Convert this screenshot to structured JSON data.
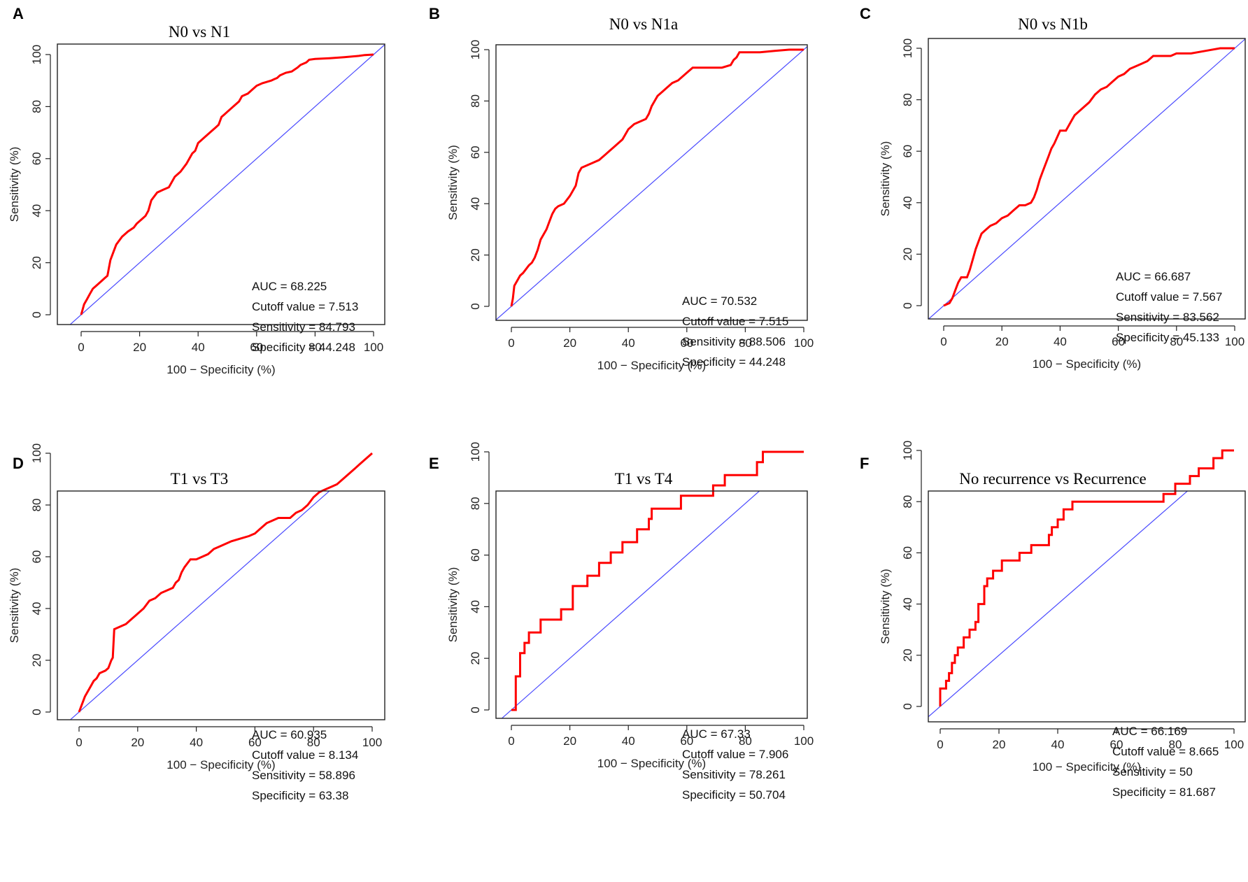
{
  "figure": {
    "panels": [
      "A",
      "B",
      "C",
      "D",
      "E",
      "F"
    ]
  },
  "chart_data": [
    {
      "type": "line",
      "panel": "A",
      "title": "N0 vs N1",
      "xlabel": "100 − Specificity (%)",
      "ylabel": "Sensitivity (%)",
      "xlim": [
        0,
        100
      ],
      "ylim": [
        0,
        100
      ],
      "xticks": [
        "0",
        "20",
        "40",
        "60",
        "80",
        "100"
      ],
      "yticks": [
        "0",
        "20",
        "40",
        "60",
        "80",
        "100"
      ],
      "reference_line": {
        "x": [
          0,
          100
        ],
        "y": [
          0,
          100
        ],
        "color": "#4a4aff"
      },
      "series": [
        {
          "name": "ROC",
          "color": "#ff0000",
          "x": [
            0,
            0.5,
            1,
            2,
            3,
            4,
            5,
            6,
            7,
            8,
            9,
            9.5,
            10,
            11,
            12,
            14,
            16,
            18,
            19,
            21,
            22,
            23,
            24,
            26,
            28,
            30,
            31,
            32,
            34,
            36,
            37,
            38,
            39,
            40,
            41,
            42,
            44,
            46,
            47,
            48,
            49,
            50,
            52,
            54,
            55,
            57,
            58,
            60,
            62,
            65,
            66,
            67,
            68,
            70,
            72,
            74,
            75,
            77,
            78,
            80,
            85,
            90,
            95,
            97,
            100
          ],
          "y": [
            0,
            2,
            4,
            6,
            8,
            10,
            11,
            12,
            13,
            14,
            15,
            18,
            21,
            24,
            27,
            30,
            32,
            33.5,
            35,
            37,
            38,
            40,
            44,
            47,
            48,
            49,
            51,
            53,
            55,
            58,
            60,
            62,
            63,
            66,
            67,
            68,
            70,
            72,
            73,
            76,
            77,
            78,
            80,
            82,
            84,
            85,
            86,
            88,
            89,
            90,
            90.5,
            91,
            92,
            93,
            93.5,
            95,
            96,
            97,
            98,
            98.3,
            98.6,
            99,
            99.5,
            99.8,
            100
          ]
        }
      ],
      "stats": {
        "auc": "AUC = 68.225",
        "cutoff": "Cutoff value = 7.513",
        "sensitivity": "Sensitivity = 84.793",
        "specificity": "Specificity = 44.248"
      }
    },
    {
      "type": "line",
      "panel": "B",
      "title": "N0 vs N1a",
      "xlabel": "100 − Specificity (%)",
      "ylabel": "Sensitivity (%)",
      "xlim": [
        0,
        100
      ],
      "ylim": [
        0,
        100
      ],
      "xticks": [
        "0",
        "20",
        "40",
        "60",
        "80",
        "100"
      ],
      "yticks": [
        "0",
        "20",
        "40",
        "60",
        "80",
        "100"
      ],
      "reference_line": {
        "x": [
          0,
          100
        ],
        "y": [
          0,
          100
        ],
        "color": "#4a4aff"
      },
      "series": [
        {
          "name": "ROC",
          "color": "#ff0000",
          "x": [
            0,
            0.5,
            1,
            2,
            3,
            4,
            5,
            6,
            7,
            8,
            9,
            10,
            11,
            12,
            13,
            14,
            15,
            16,
            18,
            20,
            21,
            22,
            23,
            24,
            26,
            28,
            30,
            31,
            32,
            34,
            35,
            36,
            38,
            39,
            40,
            41,
            42,
            44,
            46,
            47,
            48,
            49,
            50,
            52,
            54,
            55,
            57,
            58,
            60,
            62,
            64,
            66,
            68,
            70,
            72,
            75,
            76,
            77,
            78,
            80,
            85,
            90,
            95,
            100
          ],
          "y": [
            0,
            3,
            8,
            10,
            12,
            13,
            14.5,
            16,
            17,
            19,
            22,
            26,
            28,
            30,
            33,
            36,
            38,
            39,
            40,
            43,
            45,
            47,
            52,
            54,
            55,
            56,
            57,
            58,
            59,
            61,
            62,
            63,
            65,
            67,
            69,
            70,
            71,
            72,
            73,
            75,
            78,
            80,
            82,
            84,
            86,
            87,
            88,
            89,
            91,
            93,
            93,
            93,
            93,
            93,
            93,
            94,
            96,
            97,
            99,
            99,
            99,
            99.5,
            100,
            100
          ]
        }
      ],
      "stats": {
        "auc": "AUC = 70.532",
        "cutoff": "Cutoff value = 7.515",
        "sensitivity": "Sensitivity = 88.506",
        "specificity": "Specificity = 44.248"
      }
    },
    {
      "type": "line",
      "panel": "C",
      "title": "N0 vs N1b",
      "xlabel": "100 − Specificity (%)",
      "ylabel": "Sensitivity (%)",
      "xlim": [
        0,
        100
      ],
      "ylim": [
        0,
        100
      ],
      "xticks": [
        "0",
        "20",
        "40",
        "60",
        "80",
        "100"
      ],
      "yticks": [
        "0",
        "20",
        "40",
        "60",
        "80",
        "100"
      ],
      "reference_line": {
        "x": [
          0,
          100
        ],
        "y": [
          0,
          100
        ],
        "color": "#4a4aff"
      },
      "series": [
        {
          "name": "ROC",
          "color": "#ff0000",
          "x": [
            0,
            2,
            3,
            4,
            5,
            6,
            8,
            9,
            10,
            11,
            12,
            13,
            14,
            16,
            18,
            20,
            22,
            24,
            26,
            28,
            30,
            31,
            32,
            33,
            34,
            35,
            36,
            37,
            38,
            40,
            42,
            44,
            45,
            46,
            48,
            50,
            52,
            54,
            56,
            58,
            60,
            62,
            64,
            66,
            68,
            70,
            72,
            74,
            76,
            78,
            80,
            85,
            90,
            95,
            100
          ],
          "y": [
            0,
            1,
            3,
            6,
            9,
            11,
            11,
            14,
            18,
            22,
            25,
            28,
            29,
            31,
            32,
            34,
            35,
            37,
            39,
            39,
            40,
            42,
            45,
            49,
            52,
            55,
            58,
            61,
            63,
            68,
            68,
            72,
            74,
            75,
            77,
            79,
            82,
            84,
            85,
            87,
            89,
            90,
            92,
            93,
            94,
            95,
            97,
            97,
            97,
            97,
            98,
            98,
            99,
            100,
            100
          ]
        }
      ],
      "stats": {
        "auc": "AUC = 66.687",
        "cutoff": "Cutoff value = 7.567",
        "sensitivity": "Sensitivity = 83.562",
        "specificity": "Specificity = 45.133"
      }
    },
    {
      "type": "line",
      "panel": "D",
      "title": "T1 vs T3",
      "xlabel": "100 − Specificity (%)",
      "ylabel": "Sensitivity (%)",
      "xlim": [
        0,
        100
      ],
      "ylim": [
        0,
        100
      ],
      "xticks": [
        "0",
        "20",
        "40",
        "60",
        "80",
        "100"
      ],
      "yticks": [
        "0",
        "20",
        "40",
        "60",
        "80",
        "100"
      ],
      "reference_line": {
        "x": [
          0,
          100
        ],
        "y": [
          0,
          100
        ],
        "color": "#4a4aff"
      },
      "series": [
        {
          "name": "ROC",
          "color": "#ff0000",
          "x": [
            0,
            1,
            2,
            3,
            4,
            5,
            6,
            7,
            8,
            9,
            10,
            11,
            11.5,
            12,
            14,
            16,
            18,
            19,
            20,
            22,
            24,
            26,
            28,
            30,
            32,
            33,
            34,
            35,
            36,
            38,
            40,
            42,
            44,
            46,
            48,
            50,
            52,
            55,
            58,
            60,
            62,
            64,
            66,
            68,
            70,
            72,
            74,
            76,
            78,
            80,
            82,
            84,
            86,
            88,
            90,
            92,
            94,
            96,
            98,
            100
          ],
          "y": [
            0,
            3,
            6,
            8,
            10,
            12,
            13,
            15,
            15.5,
            16,
            17,
            20,
            21,
            32,
            33,
            34,
            36,
            37,
            38,
            40,
            43,
            44,
            46,
            47,
            48,
            50,
            51,
            54,
            56,
            59,
            59,
            60,
            61,
            63,
            64,
            65,
            66,
            67,
            68,
            69,
            71,
            73,
            74,
            75,
            75,
            75,
            77,
            78,
            80,
            83,
            85,
            86,
            87,
            88,
            90,
            92,
            94,
            96,
            98,
            100
          ]
        }
      ],
      "stats": {
        "auc": "AUC = 60.935",
        "cutoff": "Cutoff value = 8.134",
        "sensitivity": "Sensitivity = 58.896",
        "specificity": "Specificity = 63.38"
      }
    },
    {
      "type": "line",
      "panel": "E",
      "title": "T1 vs T4",
      "xlabel": "100 − Specificity (%)",
      "ylabel": "Sensitivity (%)",
      "xlim": [
        0,
        100
      ],
      "ylim": [
        0,
        100
      ],
      "xticks": [
        "0",
        "20",
        "40",
        "60",
        "80",
        "100"
      ],
      "yticks": [
        "0",
        "20",
        "40",
        "60",
        "80",
        "100"
      ],
      "reference_line": {
        "x": [
          0,
          100
        ],
        "y": [
          0,
          100
        ],
        "color": "#4a4aff"
      },
      "series": [
        {
          "name": "ROC",
          "color": "#ff0000",
          "x": [
            0,
            1.5,
            1.5,
            1.5,
            3,
            3,
            4.5,
            4.5,
            6,
            6,
            10,
            10,
            17,
            17,
            21,
            21,
            26,
            26,
            30,
            30,
            34,
            34,
            38,
            38,
            43,
            43,
            47,
            47,
            48,
            48,
            58,
            58,
            69,
            69,
            73,
            73,
            84,
            84,
            86,
            86,
            100
          ],
          "y": [
            0,
            0,
            4,
            13,
            13,
            22,
            22,
            26,
            26,
            30,
            30,
            35,
            35,
            39,
            39,
            48,
            48,
            52,
            52,
            57,
            57,
            61,
            61,
            65,
            65,
            70,
            70,
            74,
            74,
            78,
            78,
            83,
            83,
            87,
            87,
            91,
            91,
            96,
            96,
            100,
            100
          ]
        }
      ],
      "stats": {
        "auc": "AUC = 67.33",
        "cutoff": "Cutoff value = 7.906",
        "sensitivity": "Sensitivity = 78.261",
        "specificity": "Specificity = 50.704"
      }
    },
    {
      "type": "line",
      "panel": "F",
      "title": "No recurrence vs Recurrence",
      "xlabel": "100 − Specificity (%)",
      "ylabel": "Sensitivity (%)",
      "xlim": [
        0,
        100
      ],
      "ylim": [
        0,
        100
      ],
      "xticks": [
        "0",
        "20",
        "40",
        "60",
        "80",
        "100"
      ],
      "yticks": [
        "0",
        "20",
        "40",
        "60",
        "80",
        "100"
      ],
      "reference_line": {
        "x": [
          0,
          100
        ],
        "y": [
          0,
          100
        ],
        "color": "#4a4aff"
      },
      "series": [
        {
          "name": "ROC",
          "color": "#ff0000",
          "x": [
            0,
            0,
            2,
            2,
            3,
            3,
            4,
            4,
            5,
            5,
            6,
            6,
            8,
            8,
            10,
            10,
            12,
            12,
            13,
            13,
            15,
            15,
            16,
            16,
            18,
            18,
            21,
            21,
            27,
            27,
            31,
            31,
            37,
            37,
            38,
            38,
            40,
            40,
            42,
            42,
            45,
            45,
            48,
            48,
            52,
            52,
            76,
            76,
            80,
            80,
            85,
            85,
            88,
            88,
            93,
            93,
            96,
            96,
            100
          ],
          "y": [
            0,
            7,
            7,
            10,
            10,
            13,
            13,
            17,
            17,
            20,
            20,
            23,
            23,
            27,
            27,
            30,
            30,
            33,
            33,
            40,
            40,
            47,
            47,
            50,
            50,
            53,
            53,
            57,
            57,
            60,
            60,
            63,
            63,
            67,
            67,
            70,
            70,
            73,
            73,
            77,
            77,
            80,
            80,
            80,
            80,
            80,
            80,
            83,
            83,
            87,
            87,
            90,
            90,
            93,
            93,
            97,
            97,
            100,
            100
          ]
        }
      ],
      "stats": {
        "auc": "AUC = 66.169",
        "cutoff": "Cutoff value = 8.665",
        "sensitivity": "Sensitivity = 50",
        "specificity": "Specificity = 81.687"
      }
    }
  ]
}
